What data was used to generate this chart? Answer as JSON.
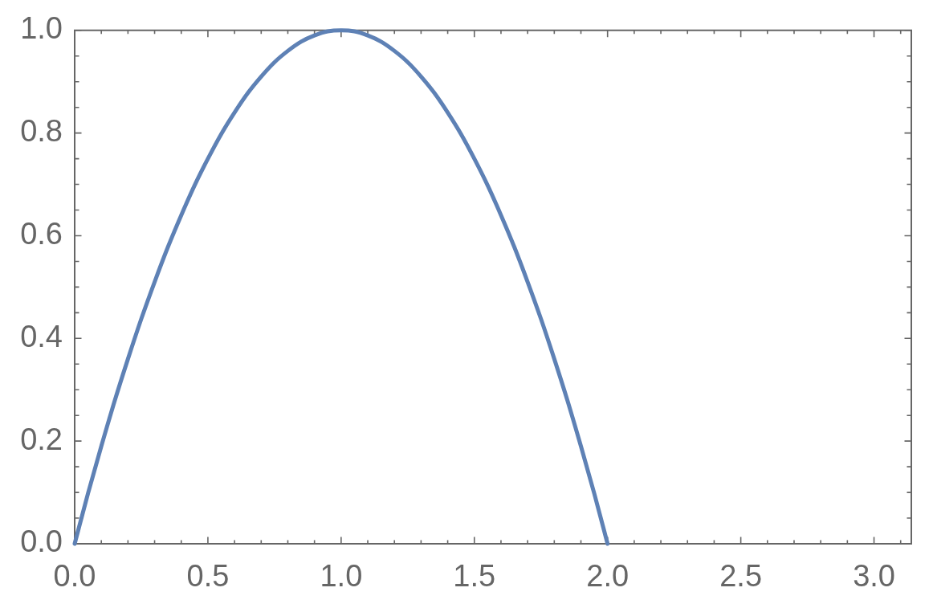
{
  "chart_data": {
    "type": "line",
    "x": [
      0,
      0.05,
      0.1,
      0.15,
      0.2,
      0.25,
      0.3,
      0.35,
      0.4,
      0.45,
      0.5,
      0.55,
      0.6,
      0.65,
      0.7,
      0.75,
      0.8,
      0.85,
      0.9,
      0.95,
      1,
      1.05,
      1.1,
      1.15,
      1.2,
      1.25,
      1.3,
      1.35,
      1.4,
      1.45,
      1.5,
      1.55,
      1.6,
      1.65,
      1.7,
      1.75,
      1.8,
      1.85,
      1.9,
      1.95,
      2
    ],
    "values": [
      0,
      0.098,
      0.19,
      0.278,
      0.36,
      0.438,
      0.51,
      0.578,
      0.64,
      0.698,
      0.75,
      0.798,
      0.84,
      0.878,
      0.91,
      0.938,
      0.96,
      0.978,
      0.99,
      0.998,
      1,
      0.998,
      0.99,
      0.978,
      0.96,
      0.938,
      0.91,
      0.878,
      0.84,
      0.798,
      0.75,
      0.698,
      0.64,
      0.578,
      0.51,
      0.438,
      0.36,
      0.278,
      0.19,
      0.098,
      0
    ],
    "color": "#5e81b5",
    "xlim": [
      0,
      3.14
    ],
    "ylim": [
      0,
      1
    ],
    "xticks": [
      {
        "value": 0,
        "label": "0.0"
      },
      {
        "value": 0.1,
        "label": null
      },
      {
        "value": 0.2,
        "label": null
      },
      {
        "value": 0.3,
        "label": null
      },
      {
        "value": 0.4,
        "label": null
      },
      0.5,
      {
        "value": 0.6,
        "label": null
      },
      {
        "value": 0.7,
        "label": null
      },
      {
        "value": 0.8,
        "label": null
      },
      {
        "value": 0.9,
        "label": null
      },
      {
        "value": 1,
        "label": "1.0"
      },
      {
        "value": 1.1,
        "label": null
      },
      {
        "value": 1.2,
        "label": null
      },
      {
        "value": 1.3,
        "label": null
      },
      {
        "value": 1.4,
        "label": null
      },
      1.5,
      {
        "value": 1.6,
        "label": null
      },
      {
        "value": 1.7,
        "label": null
      },
      {
        "value": 1.8,
        "label": null
      },
      {
        "value": 1.9,
        "label": null
      },
      {
        "value": 2,
        "label": "2.0"
      },
      {
        "value": 2.1,
        "label": null
      },
      {
        "value": 2.2,
        "label": null
      },
      {
        "value": 2.3,
        "label": null
      },
      {
        "value": 2.4,
        "label": null
      },
      2.5,
      {
        "value": 2.6,
        "label": null
      },
      {
        "value": 2.7,
        "label": null
      },
      {
        "value": 2.8,
        "label": null
      },
      {
        "value": 2.9,
        "label": null
      },
      {
        "value": 3,
        "label": "3.0"
      },
      {
        "value": 3.1,
        "label": null
      }
    ],
    "yticks": [
      {
        "value": 0,
        "label": "0.0"
      },
      {
        "value": 0.05,
        "label": null
      },
      {
        "value": 0.1,
        "label": null
      },
      {
        "value": 0.15,
        "label": null
      },
      0.2,
      {
        "value": 0.25,
        "label": null
      },
      {
        "value": 0.3,
        "label": null
      },
      {
        "value": 0.35,
        "label": null
      },
      0.4,
      {
        "value": 0.45,
        "label": null
      },
      {
        "value": 0.5,
        "label": null
      },
      {
        "value": 0.55,
        "label": null
      },
      0.6,
      {
        "value": 0.65,
        "label": null
      },
      {
        "value": 0.7,
        "label": null
      },
      {
        "value": 0.75,
        "label": null
      },
      0.8,
      {
        "value": 0.85,
        "label": null
      },
      {
        "value": 0.9,
        "label": null
      },
      {
        "value": 0.95,
        "label": null
      },
      {
        "value": 1,
        "label": "1.0"
      }
    ]
  }
}
